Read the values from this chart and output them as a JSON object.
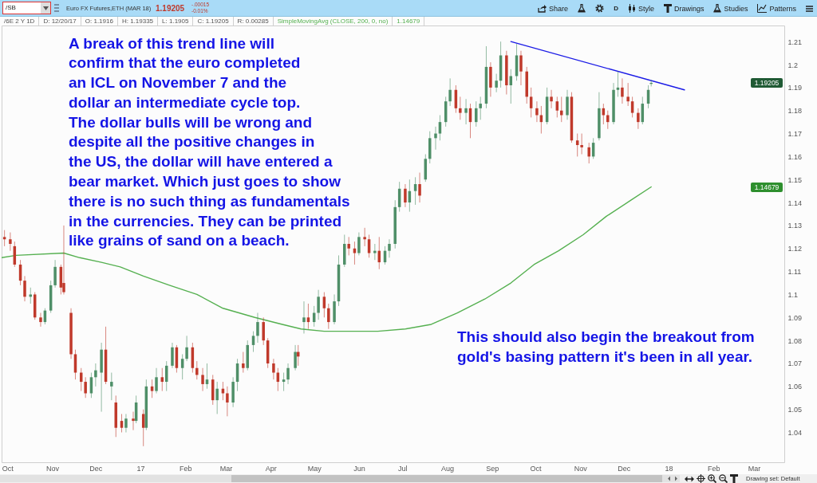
{
  "chart_data": {
    "type": "candlestick",
    "title": "Euro FX Futures,ETH (MAR 18)",
    "x": [
      "2016-09-29",
      "2016-10-03",
      "2016-10-06",
      "2016-10-10",
      "2016-10-13",
      "2016-10-17",
      "2016-10-20",
      "2016-10-24",
      "2016-10-27",
      "2016-10-31",
      "2016-11-03",
      "2016-11-07",
      "2016-11-09",
      "2016-11-14",
      "2016-11-17",
      "2016-11-21",
      "2016-11-24",
      "2016-11-28",
      "2016-12-01",
      "2016-12-05",
      "2016-12-08",
      "2016-12-12",
      "2016-12-15",
      "2016-12-19",
      "2016-12-22",
      "2016-12-27",
      "2016-12-29",
      "2017-01-03",
      "2017-01-05",
      "2017-01-09",
      "2017-01-12",
      "2017-01-16",
      "2017-01-19",
      "2017-01-23",
      "2017-01-26",
      "2017-01-30",
      "2017-02-02",
      "2017-02-06",
      "2017-02-09",
      "2017-02-13",
      "2017-02-16",
      "2017-02-20",
      "2017-02-23",
      "2017-02-27",
      "2017-03-02",
      "2017-03-06",
      "2017-03-09",
      "2017-03-13",
      "2017-03-16",
      "2017-03-20",
      "2017-03-23",
      "2017-03-27",
      "2017-03-30",
      "2017-04-03",
      "2017-04-06",
      "2017-04-10",
      "2017-04-13",
      "2017-04-18",
      "2017-04-20",
      "2017-04-24",
      "2017-04-27",
      "2017-05-01",
      "2017-05-04",
      "2017-05-08",
      "2017-05-11",
      "2017-05-15",
      "2017-05-18",
      "2017-05-22",
      "2017-05-25",
      "2017-05-29",
      "2017-06-01",
      "2017-06-05",
      "2017-06-08",
      "2017-06-12",
      "2017-06-15",
      "2017-06-19",
      "2017-06-22",
      "2017-06-26",
      "2017-06-29",
      "2017-07-03",
      "2017-07-06",
      "2017-07-10",
      "2017-07-13",
      "2017-07-17",
      "2017-07-20",
      "2017-07-24",
      "2017-07-27",
      "2017-07-31",
      "2017-08-03",
      "2017-08-07",
      "2017-08-10",
      "2017-08-14",
      "2017-08-17",
      "2017-08-21",
      "2017-08-24",
      "2017-08-28",
      "2017-08-31",
      "2017-09-04",
      "2017-09-07",
      "2017-09-11",
      "2017-09-14",
      "2017-09-18",
      "2017-09-21",
      "2017-09-25",
      "2017-09-28",
      "2017-10-02",
      "2017-10-05",
      "2017-10-09",
      "2017-10-12",
      "2017-10-16",
      "2017-10-19",
      "2017-10-23",
      "2017-10-26",
      "2017-10-30",
      "2017-11-02",
      "2017-11-07",
      "2017-11-10",
      "2017-11-14",
      "2017-11-17",
      "2017-11-20",
      "2017-11-24",
      "2017-11-27",
      "2017-11-30",
      "2017-12-04",
      "2017-12-07",
      "2017-12-11",
      "2017-12-14",
      "2017-12-18",
      "2017-12-20"
    ],
    "ohlc": [
      [
        1.125,
        1.128,
        1.121,
        1.124
      ],
      [
        1.124,
        1.127,
        1.119,
        1.122
      ],
      [
        1.121,
        1.123,
        1.112,
        1.113
      ],
      [
        1.113,
        1.115,
        1.104,
        1.106
      ],
      [
        1.106,
        1.108,
        1.097,
        1.099
      ],
      [
        1.099,
        1.103,
        1.096,
        1.1
      ],
      [
        1.1,
        1.101,
        1.089,
        1.09
      ],
      [
        1.09,
        1.092,
        1.086,
        1.088
      ],
      [
        1.088,
        1.094,
        1.087,
        1.093
      ],
      [
        1.093,
        1.106,
        1.092,
        1.104
      ],
      [
        1.104,
        1.115,
        1.103,
        1.112
      ],
      [
        1.112,
        1.113,
        1.1,
        1.103
      ],
      [
        1.105,
        1.13,
        1.1,
        1.101
      ],
      [
        1.092,
        1.094,
        1.072,
        1.074
      ],
      [
        1.074,
        1.076,
        1.063,
        1.066
      ],
      [
        1.066,
        1.068,
        1.058,
        1.062
      ],
      [
        1.062,
        1.064,
        1.055,
        1.057
      ],
      [
        1.057,
        1.066,
        1.055,
        1.064
      ],
      [
        1.064,
        1.07,
        1.06,
        1.067
      ],
      [
        1.066,
        1.079,
        1.049,
        1.076
      ],
      [
        1.076,
        1.086,
        1.061,
        1.062
      ],
      [
        1.06,
        1.066,
        1.054,
        1.062
      ],
      [
        1.053,
        1.056,
        1.038,
        1.042
      ],
      [
        1.045,
        1.048,
        1.04,
        1.042
      ],
      [
        1.042,
        1.048,
        1.04,
        1.046
      ],
      [
        1.046,
        1.049,
        1.041,
        1.045
      ],
      [
        1.045,
        1.056,
        1.044,
        1.053
      ],
      [
        1.048,
        1.05,
        1.034,
        1.042
      ],
      [
        1.042,
        1.063,
        1.041,
        1.06
      ],
      [
        1.06,
        1.063,
        1.055,
        1.058
      ],
      [
        1.058,
        1.068,
        1.057,
        1.064
      ],
      [
        1.064,
        1.068,
        1.058,
        1.062
      ],
      [
        1.062,
        1.071,
        1.058,
        1.069
      ],
      [
        1.069,
        1.079,
        1.068,
        1.077
      ],
      [
        1.077,
        1.078,
        1.066,
        1.068
      ],
      [
        1.068,
        1.074,
        1.063,
        1.072
      ],
      [
        1.072,
        1.082,
        1.071,
        1.077
      ],
      [
        1.077,
        1.079,
        1.066,
        1.068
      ],
      [
        1.068,
        1.071,
        1.063,
        1.065
      ],
      [
        1.065,
        1.068,
        1.058,
        1.061
      ],
      [
        1.061,
        1.07,
        1.059,
        1.063
      ],
      [
        1.063,
        1.065,
        1.052,
        1.054
      ],
      [
        1.054,
        1.062,
        1.048,
        1.059
      ],
      [
        1.059,
        1.062,
        1.054,
        1.057
      ],
      [
        1.057,
        1.06,
        1.047,
        1.053
      ],
      [
        1.053,
        1.064,
        1.051,
        1.062
      ],
      [
        1.062,
        1.072,
        1.058,
        1.07
      ],
      [
        1.07,
        1.075,
        1.066,
        1.068
      ],
      [
        1.068,
        1.08,
        1.067,
        1.078
      ],
      [
        1.078,
        1.084,
        1.075,
        1.082
      ],
      [
        1.082,
        1.092,
        1.079,
        1.088
      ],
      [
        1.088,
        1.09,
        1.078,
        1.08
      ],
      [
        1.08,
        1.081,
        1.068,
        1.07
      ],
      [
        1.07,
        1.072,
        1.063,
        1.066
      ],
      [
        1.066,
        1.068,
        1.058,
        1.062
      ],
      [
        1.062,
        1.066,
        1.058,
        1.063
      ],
      [
        1.063,
        1.07,
        1.061,
        1.068
      ],
      [
        1.068,
        1.078,
        1.067,
        1.075
      ],
      [
        1.075,
        1.078,
        1.069,
        1.073
      ],
      [
        1.088,
        1.097,
        1.083,
        1.09
      ],
      [
        1.09,
        1.096,
        1.085,
        1.088
      ],
      [
        1.088,
        1.095,
        1.086,
        1.092
      ],
      [
        1.092,
        1.102,
        1.089,
        1.099
      ],
      [
        1.099,
        1.101,
        1.09,
        1.094
      ],
      [
        1.094,
        1.096,
        1.085,
        1.088
      ],
      [
        1.088,
        1.1,
        1.087,
        1.097
      ],
      [
        1.097,
        1.117,
        1.095,
        1.113
      ],
      [
        1.113,
        1.126,
        1.112,
        1.122
      ],
      [
        1.122,
        1.125,
        1.117,
        1.12
      ],
      [
        1.12,
        1.123,
        1.113,
        1.118
      ],
      [
        1.118,
        1.127,
        1.117,
        1.125
      ],
      [
        1.125,
        1.129,
        1.121,
        1.124
      ],
      [
        1.124,
        1.126,
        1.116,
        1.118
      ],
      [
        1.118,
        1.122,
        1.115,
        1.119
      ],
      [
        1.119,
        1.125,
        1.111,
        1.114
      ],
      [
        1.114,
        1.121,
        1.113,
        1.119
      ],
      [
        1.119,
        1.124,
        1.116,
        1.122
      ],
      [
        1.122,
        1.141,
        1.12,
        1.138
      ],
      [
        1.138,
        1.149,
        1.136,
        1.146
      ],
      [
        1.146,
        1.148,
        1.138,
        1.14
      ],
      [
        1.14,
        1.15,
        1.136,
        1.145
      ],
      [
        1.145,
        1.151,
        1.139,
        1.148
      ],
      [
        1.148,
        1.153,
        1.14,
        1.143
      ],
      [
        1.15,
        1.161,
        1.149,
        1.159
      ],
      [
        1.159,
        1.171,
        1.157,
        1.168
      ],
      [
        1.168,
        1.173,
        1.163,
        1.17
      ],
      [
        1.17,
        1.178,
        1.167,
        1.175
      ],
      [
        1.175,
        1.186,
        1.173,
        1.184
      ],
      [
        1.184,
        1.194,
        1.182,
        1.189
      ],
      [
        1.189,
        1.191,
        1.179,
        1.181
      ],
      [
        1.181,
        1.186,
        1.176,
        1.179
      ],
      [
        1.179,
        1.185,
        1.174,
        1.181
      ],
      [
        1.181,
        1.183,
        1.168,
        1.175
      ],
      [
        1.175,
        1.184,
        1.173,
        1.181
      ],
      [
        1.181,
        1.186,
        1.176,
        1.183
      ],
      [
        1.183,
        1.208,
        1.181,
        1.199
      ],
      [
        1.199,
        1.201,
        1.186,
        1.19
      ],
      [
        1.19,
        1.196,
        1.188,
        1.193
      ],
      [
        1.193,
        1.21,
        1.19,
        1.204
      ],
      [
        1.204,
        1.206,
        1.187,
        1.191
      ],
      [
        1.191,
        1.198,
        1.183,
        1.195
      ],
      [
        1.195,
        1.209,
        1.193,
        1.204
      ],
      [
        1.204,
        1.206,
        1.191,
        1.197
      ],
      [
        1.197,
        1.199,
        1.183,
        1.186
      ],
      [
        1.186,
        1.19,
        1.177,
        1.181
      ],
      [
        1.181,
        1.184,
        1.175,
        1.178
      ],
      [
        1.178,
        1.182,
        1.17,
        1.175
      ],
      [
        1.175,
        1.19,
        1.174,
        1.186
      ],
      [
        1.186,
        1.189,
        1.181,
        1.184
      ],
      [
        1.184,
        1.186,
        1.177,
        1.18
      ],
      [
        1.18,
        1.186,
        1.175,
        1.178
      ],
      [
        1.178,
        1.189,
        1.176,
        1.186
      ],
      [
        1.186,
        1.188,
        1.166,
        1.167
      ],
      [
        1.167,
        1.17,
        1.16,
        1.165
      ],
      [
        1.165,
        1.17,
        1.161,
        1.164
      ],
      [
        1.164,
        1.166,
        1.157,
        1.16
      ],
      [
        1.16,
        1.168,
        1.159,
        1.166
      ],
      [
        1.168,
        1.188,
        1.167,
        1.181
      ],
      [
        1.181,
        1.183,
        1.174,
        1.178
      ],
      [
        1.178,
        1.18,
        1.172,
        1.175
      ],
      [
        1.175,
        1.192,
        1.174,
        1.189
      ],
      [
        1.189,
        1.197,
        1.186,
        1.19
      ],
      [
        1.19,
        1.194,
        1.183,
        1.186
      ],
      [
        1.186,
        1.192,
        1.182,
        1.184
      ],
      [
        1.184,
        1.186,
        1.177,
        1.179
      ],
      [
        1.179,
        1.181,
        1.172,
        1.175
      ],
      [
        1.175,
        1.186,
        1.174,
        1.183
      ],
      [
        1.183,
        1.191,
        1.181,
        1.189
      ],
      [
        1.1916,
        1.19335,
        1.1905,
        1.19205
      ]
    ],
    "colors": [
      "#c0392b",
      "#c0392b",
      "#c0392b",
      "#c0392b",
      "#c0392b",
      "#4f8f68",
      "#c0392b",
      "#c0392b",
      "#4f8f68",
      "#4f8f68",
      "#4f8f68",
      "#c0392b",
      "#c0392b",
      "#c0392b",
      "#c0392b",
      "#c0392b",
      "#c0392b",
      "#4f8f68",
      "#4f8f68",
      "#4f8f68",
      "#c0392b",
      "#4f8f68",
      "#c0392b",
      "#c0392b",
      "#4f8f68",
      "#c0392b",
      "#4f8f68",
      "#c0392b",
      "#4f8f68",
      "#c0392b",
      "#4f8f68",
      "#c0392b",
      "#4f8f68",
      "#4f8f68",
      "#c0392b",
      "#4f8f68",
      "#4f8f68",
      "#c0392b",
      "#c0392b",
      "#c0392b",
      "#4f8f68",
      "#c0392b",
      "#4f8f68",
      "#c0392b",
      "#c0392b",
      "#4f8f68",
      "#4f8f68",
      "#c0392b",
      "#4f8f68",
      "#4f8f68",
      "#4f8f68",
      "#c0392b",
      "#c0392b",
      "#c0392b",
      "#c0392b",
      "#4f8f68",
      "#4f8f68",
      "#4f8f68",
      "#c0392b",
      "#4f8f68",
      "#c0392b",
      "#4f8f68",
      "#4f8f68",
      "#c0392b",
      "#c0392b",
      "#4f8f68",
      "#4f8f68",
      "#4f8f68",
      "#c0392b",
      "#c0392b",
      "#4f8f68",
      "#c0392b",
      "#c0392b",
      "#4f8f68",
      "#c0392b",
      "#4f8f68",
      "#4f8f68",
      "#4f8f68",
      "#4f8f68",
      "#c0392b",
      "#4f8f68",
      "#4f8f68",
      "#c0392b",
      "#4f8f68",
      "#4f8f68",
      "#4f8f68",
      "#4f8f68",
      "#4f8f68",
      "#4f8f68",
      "#c0392b",
      "#c0392b",
      "#4f8f68",
      "#c0392b",
      "#4f8f68",
      "#4f8f68",
      "#4f8f68",
      "#c0392b",
      "#4f8f68",
      "#4f8f68",
      "#c0392b",
      "#4f8f68",
      "#4f8f68",
      "#c0392b",
      "#c0392b",
      "#c0392b",
      "#c0392b",
      "#c0392b",
      "#4f8f68",
      "#c0392b",
      "#c0392b",
      "#c0392b",
      "#4f8f68",
      "#c0392b",
      "#c0392b",
      "#c0392b",
      "#c0392b",
      "#4f8f68",
      "#4f8f68",
      "#c0392b",
      "#c0392b",
      "#4f8f68",
      "#4f8f68",
      "#c0392b",
      "#c0392b",
      "#c0392b",
      "#c0392b",
      "#4f8f68",
      "#4f8f68",
      "#4f8f68"
    ],
    "series": [
      {
        "type": "line",
        "name": "SimpleMovingAvg (CLOSE, 200, 0, no)",
        "color": "#55b050",
        "x": [
          "2016-09-27",
          "2016-10-07",
          "2016-11-09",
          "2016-11-20",
          "2016-12-05",
          "2016-12-18",
          "2017-01-03",
          "2017-01-21",
          "2017-02-09",
          "2017-02-27",
          "2017-03-21",
          "2017-04-09",
          "2017-04-22",
          "2017-05-08",
          "2017-06-14",
          "2017-07-03",
          "2017-07-21",
          "2017-08-08",
          "2017-08-27",
          "2017-09-14",
          "2017-09-30",
          "2017-10-17",
          "2017-11-03",
          "2017-11-19",
          "2017-12-06",
          "2017-12-20"
        ],
        "values": [
          1.116,
          1.117,
          1.118,
          1.116,
          1.114,
          1.112,
          1.108,
          1.104,
          1.1,
          1.094,
          1.09,
          1.087,
          1.085,
          1.084,
          1.084,
          1.085,
          1.087,
          1.092,
          1.098,
          1.105,
          1.113,
          1.119,
          1.126,
          1.134,
          1.141,
          1.14679
        ]
      },
      {
        "type": "line",
        "color": "#1a1ae6",
        "x": [
          "2017-09-14",
          "2018-01-12"
        ],
        "values": [
          1.21,
          1.189
        ]
      }
    ],
    "xlim": [
      "2016-09-27",
      "2018-03-22"
    ],
    "xticks": [
      {
        "value": "2016-10-01",
        "label": "Oct"
      },
      {
        "value": "2016-11-01",
        "label": "Nov"
      },
      {
        "value": "2016-12-01",
        "label": "Dec"
      },
      {
        "value": "2017-01-01",
        "label": "17"
      },
      {
        "value": "2017-02-01",
        "label": "Feb"
      },
      {
        "value": "2017-03-01",
        "label": "Mar"
      },
      {
        "value": "2017-04-01",
        "label": "Apr"
      },
      {
        "value": "2017-05-01",
        "label": "May"
      },
      {
        "value": "2017-06-01",
        "label": "Jun"
      },
      {
        "value": "2017-07-01",
        "label": "Jul"
      },
      {
        "value": "2017-08-01",
        "label": "Aug"
      },
      {
        "value": "2017-09-01",
        "label": "Sep"
      },
      {
        "value": "2017-10-01",
        "label": "Oct"
      },
      {
        "value": "2017-11-01",
        "label": "Nov"
      },
      {
        "value": "2017-12-01",
        "label": "Dec"
      },
      {
        "value": "2018-01-01",
        "label": "18"
      },
      {
        "value": "2018-02-01",
        "label": "Feb"
      },
      {
        "value": "2018-03-01",
        "label": "Mar"
      }
    ],
    "ylim": [
      1.027,
      1.217
    ],
    "yticks": [
      1.04,
      1.05,
      1.06,
      1.07,
      1.08,
      1.09,
      1.1,
      1.11,
      1.12,
      1.13,
      1.14,
      1.15,
      1.16,
      1.17,
      1.18,
      1.19,
      1.2,
      1.21
    ],
    "annotations": [
      "A break of this trend line will\nconfirm that the euro completed\nan ICL on November 7 and the\ndollar an intermediate cycle top.\nThe dollar bulls will be wrong and\ndespite all the positive changes in\nthe US, the dollar will have entered a\nbear market. Which just goes to show\nthere is no such thing as fundamentals\nin the currencies. They can be printed\nlike grains of sand on a beach.",
      "This should also begin the breakout from\ngold's basing pattern it's been in all year.",
      "/SB",
      "1.19205",
      "-.00015",
      "-0.01%",
      "Share",
      "D",
      "Style",
      "Drawings",
      "Studies",
      "Patterns",
      "/6E 2 Y 1D",
      "D: 12/20/17",
      "O: 1.1916",
      "H: 1.19335",
      "L: 1.1905",
      "C: 1.19205",
      "R: 0.00285",
      "1.14679",
      "Drawing set: Default",
      {
        "text": "1.19205",
        "y": 1.19205
      },
      {
        "text": "1.14679",
        "y": 1.14679
      }
    ]
  }
}
